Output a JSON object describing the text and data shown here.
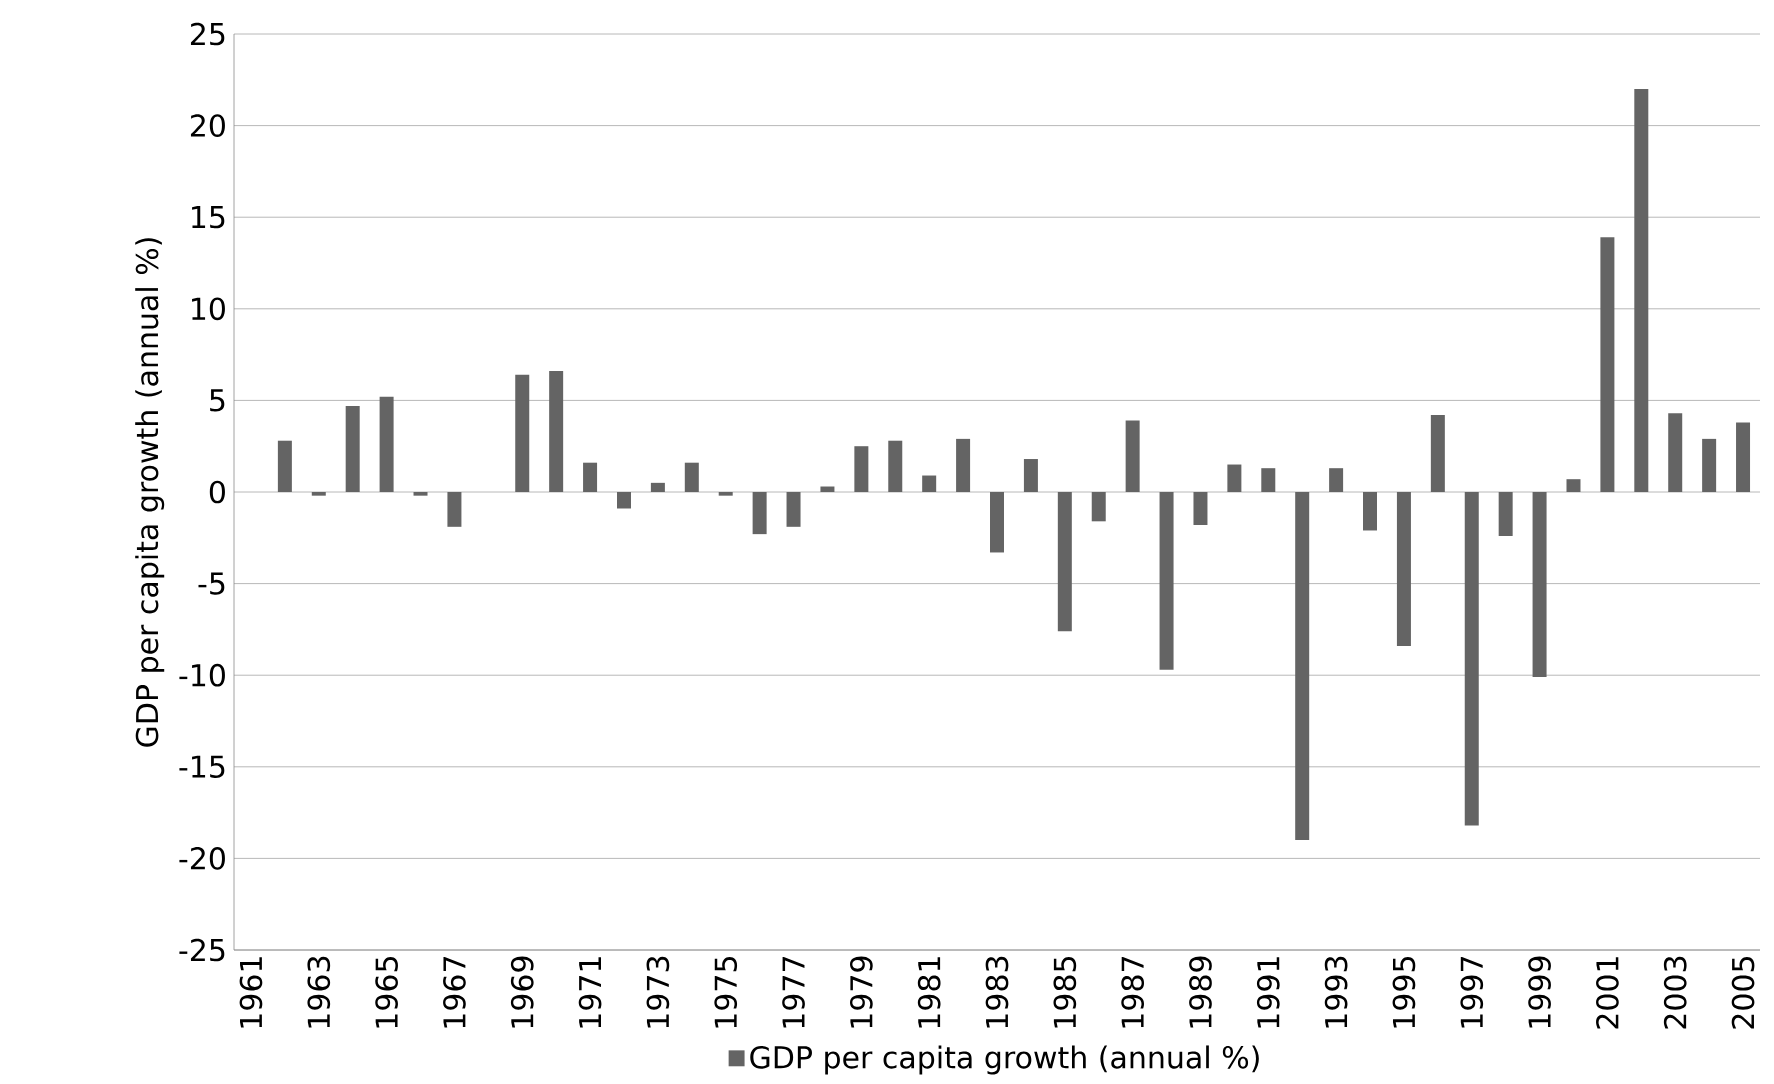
{
  "chart_data": {
    "type": "bar",
    "ylabel": "GDP per capita growth (annual %)",
    "categories": [
      "1961",
      null,
      "1963",
      null,
      "1965",
      null,
      "1967",
      null,
      "1969",
      null,
      "1971",
      null,
      "1973",
      null,
      "1975",
      null,
      "1977",
      null,
      "1979",
      null,
      "1981",
      null,
      "1983",
      null,
      "1985",
      null,
      "1987",
      null,
      "1989",
      null,
      "1991",
      null,
      "1993",
      null,
      "1995",
      null,
      "1997",
      null,
      "1999",
      null,
      "2001",
      null,
      "2003",
      null,
      "2005"
    ],
    "series": [
      {
        "name": "GDP per capita growth (annual %)",
        "color": "#646464",
        "values": [
          null,
          2.8,
          -0.2,
          4.7,
          5.2,
          -0.2,
          -1.9,
          null,
          6.4,
          6.6,
          1.6,
          -0.9,
          0.5,
          1.6,
          -0.2,
          -2.3,
          -1.9,
          0.3,
          2.5,
          2.8,
          0.9,
          2.9,
          -3.3,
          1.8,
          -7.6,
          -1.6,
          3.9,
          -9.7,
          -1.8,
          1.5,
          1.3,
          -19.0,
          1.3,
          -2.1,
          -8.4,
          4.2,
          -18.2,
          -2.4,
          -10.1,
          0.7,
          13.9,
          22.0,
          4.3,
          2.9,
          3.8
        ]
      }
    ],
    "ylim": [
      -25,
      25
    ],
    "yticks": [
      -25,
      -20,
      -15,
      -10,
      -5,
      0,
      5,
      10,
      15,
      20,
      25
    ],
    "grid": "y",
    "legend": "bottom"
  }
}
